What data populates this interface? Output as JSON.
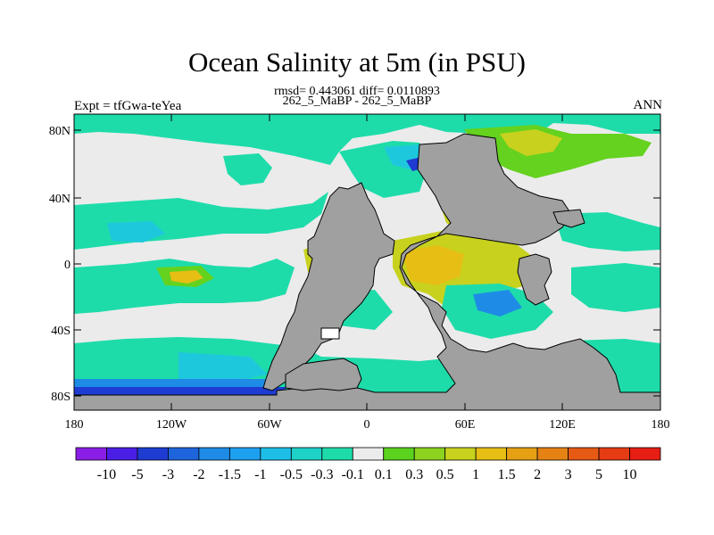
{
  "title": "Ocean Salinity at 5m (in PSU)",
  "stats_line": "rmsd= 0.443061 diff= 0.0110893",
  "comparison": "262_5_MaBP - 262_5_MaBP",
  "experiment": "Expt = tfGwa-teYea",
  "season": "ANN",
  "y_ticks": [
    "80N",
    "40N",
    "0",
    "40S",
    "80S"
  ],
  "x_ticks": [
    "180",
    "120W",
    "60W",
    "0",
    "60E",
    "120E",
    "180"
  ],
  "colorbar": {
    "labels": [
      "-10",
      "-5",
      "-3",
      "-2",
      "-1.5",
      "-1",
      "-0.5",
      "-0.3",
      "-0.1",
      "0.1",
      "0.3",
      "0.5",
      "1",
      "1.5",
      "2",
      "3",
      "5",
      "10"
    ],
    "colors": [
      "#8a1ee6",
      "#4b1ee6",
      "#1e3cd2",
      "#1e64dc",
      "#1e8ce6",
      "#1ea0f0",
      "#1ebee6",
      "#1ed2c8",
      "#1edcaa",
      "#ebebeb",
      "#5ad21e",
      "#8cd21e",
      "#c8d21e",
      "#e6be14",
      "#e6a014",
      "#e68214",
      "#e65a14",
      "#e63c14",
      "#e61e14"
    ]
  },
  "colors": {
    "land": "#a0a0a0",
    "zero": "#ebebeb",
    "teal": "#1edcaa",
    "cyan": "#1ec8dc",
    "blue": "#1e8ce6",
    "green": "#64d21e",
    "yellow": "#c8d21e",
    "orange": "#e6be14"
  }
}
